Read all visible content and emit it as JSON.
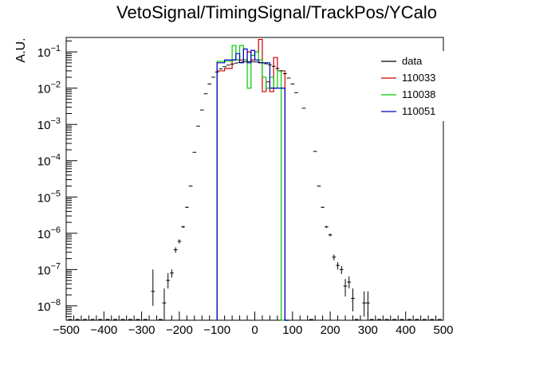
{
  "chart_data": {
    "type": "histogram",
    "title": "VetoSignal/TimingSignal/TrackPos/YCalo",
    "xlabel": "",
    "ylabel": "A.U.",
    "xlim": [
      -500,
      500
    ],
    "ylim": [
      4e-09,
      0.25
    ],
    "yscale": "log",
    "grid": false,
    "legend_position": "top-right",
    "x_tick_values": [
      -500,
      -400,
      -300,
      -200,
      -100,
      0,
      100,
      200,
      300,
      400,
      500
    ],
    "x_tick_labels": [
      "−500",
      "−400",
      "−300",
      "−200",
      "−100",
      "0",
      "100",
      "200",
      "300",
      "400",
      "500"
    ],
    "y_tick_mantissa": "10",
    "y_tick_exponents": [
      "−8",
      "−7",
      "−6",
      "−5",
      "−4",
      "−3",
      "−2",
      "−1"
    ],
    "bin_edges": [
      -100,
      -90,
      -80,
      -70,
      -60,
      -50,
      -40,
      -30,
      -20,
      -10,
      0,
      10,
      20,
      30,
      40,
      50,
      60,
      70,
      80,
      90
    ],
    "series": [
      {
        "name": "data",
        "color": "#000000",
        "style": "points",
        "points": [
          {
            "x": -270,
            "y": 2.5e-08,
            "err": [
              1e-08,
              1e-07
            ]
          },
          {
            "x": -240,
            "y": 1.2e-08,
            "err": [
              5e-09,
              3e-08
            ]
          },
          {
            "x": -230,
            "y": 5e-08,
            "err": [
              3e-08,
              8e-08
            ]
          },
          {
            "x": -220,
            "y": 8e-08,
            "err": [
              6e-08,
              1e-07
            ]
          },
          {
            "x": -210,
            "y": 3.5e-07,
            "err": [
              2.9e-07,
              4.1e-07
            ]
          },
          {
            "x": -200,
            "y": 6e-07,
            "err": [
              5.2e-07,
              6.8e-07
            ]
          },
          {
            "x": -190,
            "y": 1.5e-06,
            "err": [
              1.4e-06,
              1.6e-06
            ]
          },
          {
            "x": -180,
            "y": 5.2e-06,
            "err": [
              5e-06,
              5.4e-06
            ]
          },
          {
            "x": -170,
            "y": 2e-05,
            "err": [
              1.95e-05,
              2.05e-05
            ]
          },
          {
            "x": -160,
            "y": 0.00017
          },
          {
            "x": -150,
            "y": 0.0009
          },
          {
            "x": -140,
            "y": 0.0025
          },
          {
            "x": -130,
            "y": 0.007
          },
          {
            "x": -120,
            "y": 0.013
          },
          {
            "x": -110,
            "y": 0.02
          },
          {
            "x": -100,
            "y": 0.028
          },
          {
            "x": -90,
            "y": 0.034
          },
          {
            "x": -80,
            "y": 0.039
          },
          {
            "x": -70,
            "y": 0.043
          },
          {
            "x": -60,
            "y": 0.046
          },
          {
            "x": -50,
            "y": 0.049
          },
          {
            "x": -40,
            "y": 0.051
          },
          {
            "x": -30,
            "y": 0.053
          },
          {
            "x": -20,
            "y": 0.054
          },
          {
            "x": -10,
            "y": 0.054
          },
          {
            "x": 0,
            "y": 0.053
          },
          {
            "x": 10,
            "y": 0.052
          },
          {
            "x": 20,
            "y": 0.05
          },
          {
            "x": 30,
            "y": 0.047
          },
          {
            "x": 40,
            "y": 0.044
          },
          {
            "x": 50,
            "y": 0.04
          },
          {
            "x": 60,
            "y": 0.035
          },
          {
            "x": 70,
            "y": 0.03
          },
          {
            "x": 80,
            "y": 0.025
          },
          {
            "x": 90,
            "y": 0.019
          },
          {
            "x": 100,
            "y": 0.013
          },
          {
            "x": 110,
            "y": 0.0075
          },
          {
            "x": 130,
            "y": 0.0028
          },
          {
            "x": 160,
            "y": 0.00018
          },
          {
            "x": 170,
            "y": 2e-05,
            "err": [
              1.95e-05,
              2.05e-05
            ]
          },
          {
            "x": 180,
            "y": 5.2e-06,
            "err": [
              5e-06,
              5.4e-06
            ]
          },
          {
            "x": 190,
            "y": 1.5e-06,
            "err": [
              1.4e-06,
              1.6e-06
            ]
          },
          {
            "x": 200,
            "y": 9e-07,
            "err": [
              8.2e-07,
              9.8e-07
            ]
          },
          {
            "x": 210,
            "y": 2.2e-07,
            "err": [
              1.8e-07,
              2.6e-07
            ]
          },
          {
            "x": 220,
            "y": 1.3e-07,
            "err": [
              1e-07,
              1.6e-07
            ]
          },
          {
            "x": 230,
            "y": 1e-07,
            "err": [
              7.5e-08,
              1.25e-07
            ]
          },
          {
            "x": 240,
            "y": 3.5e-08,
            "err": [
              1.8e-08,
              5.5e-08
            ]
          },
          {
            "x": 250,
            "y": 4.5e-08,
            "err": [
              3e-08,
              6.5e-08
            ]
          },
          {
            "x": 260,
            "y": 1.6e-08,
            "err": [
              7e-09,
              3e-08
            ]
          },
          {
            "x": 290,
            "y": 1.2e-08,
            "err": [
              5e-09,
              2.5e-08
            ]
          },
          {
            "x": 300,
            "y": 1.2e-08,
            "err": [
              5e-09,
              2.5e-08
            ]
          }
        ]
      },
      {
        "name": "110033",
        "color": "#cc0000",
        "style": "step",
        "values": [
          0.03,
          0.03,
          0.035,
          0.035,
          0.06,
          0.06,
          0.06,
          0.06,
          0.1,
          0.06,
          0.1,
          0.22,
          0.008,
          0.015,
          0.008,
          0.07,
          0.03,
          0.03,
          0.0
        ]
      },
      {
        "name": "110038",
        "color": "#00cc00",
        "style": "step",
        "values": [
          0.055,
          0.055,
          0.055,
          0.055,
          0.15,
          0.06,
          0.15,
          0.06,
          0.01,
          0.08,
          0.1,
          0.06,
          0.02,
          0.01,
          0.02,
          0.01,
          0.03,
          0.0,
          0.0
        ]
      },
      {
        "name": "110051",
        "color": "#0000cc",
        "style": "step",
        "values": [
          0.05,
          0.05,
          0.06,
          0.06,
          0.06,
          0.09,
          0.05,
          0.12,
          0.05,
          0.11,
          0.06,
          0.05,
          0.05,
          0.05,
          0.01,
          0.01,
          0.01,
          0.01,
          0.0
        ]
      }
    ]
  }
}
